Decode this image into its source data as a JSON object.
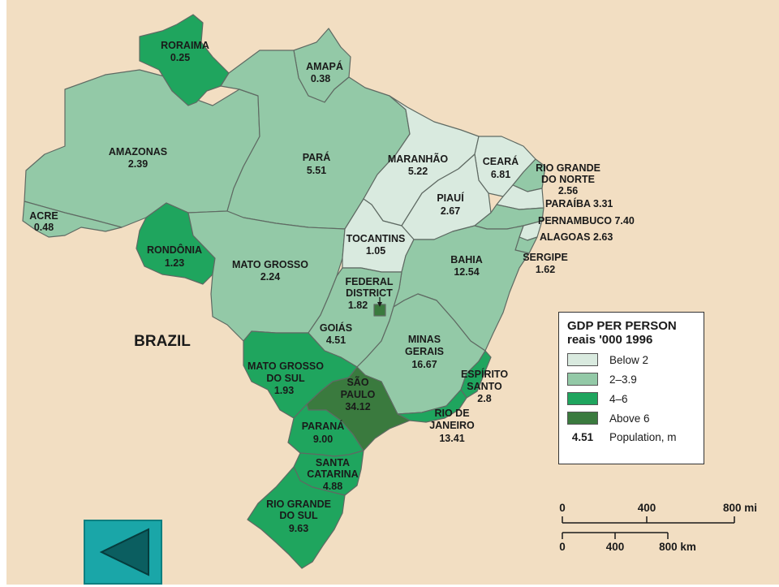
{
  "country_label": "BRAZIL",
  "colors": {
    "below_2": "#d9eadf",
    "range_2_3_9": "#93c9a7",
    "range_4_6": "#1fa55e",
    "above_6": "#3a7a3e",
    "background": "#f2dec2",
    "back_button": "#1aa6a8"
  },
  "legend": {
    "title_line1": "GDP PER PERSON",
    "title_line2": "reais '000 1996",
    "items": [
      {
        "label": "Below 2",
        "color": "#d9eadf"
      },
      {
        "label": "2–3.9",
        "color": "#93c9a7"
      },
      {
        "label": "4–6",
        "color": "#1fa55e"
      },
      {
        "label": "Above 6",
        "color": "#3a7a3e"
      }
    ],
    "population_sample": "4.51",
    "population_label": "Population, m"
  },
  "states": {
    "roraima": {
      "name": "RORAIMA",
      "pop": "0.25",
      "category": "4-6"
    },
    "amapa": {
      "name": "AMAPÁ",
      "pop": "0.38",
      "category": "2-3.9"
    },
    "amazonas": {
      "name": "AMAZONAS",
      "pop": "2.39",
      "category": "2-3.9"
    },
    "para": {
      "name": "PARÁ",
      "pop": "5.51",
      "category": "2-3.9"
    },
    "acre": {
      "name": "ACRE",
      "pop": "0.48",
      "category": "2-3.9"
    },
    "rondonia": {
      "name": "RONDÔNIA",
      "pop": "1.23",
      "category": "4-6"
    },
    "mato_grosso": {
      "name": "MATO GROSSO",
      "pop": "2.24",
      "category": "2-3.9"
    },
    "maranhao": {
      "name": "MARANHÃO",
      "pop": "5.22",
      "category": "below 2"
    },
    "ceara": {
      "name": "CEARÁ",
      "pop": "6.81",
      "category": "below 2"
    },
    "piaui": {
      "name": "PIAUÍ",
      "pop": "2.67",
      "category": "below 2"
    },
    "tocantins": {
      "name": "TOCANTINS",
      "pop": "1.05",
      "category": "below 2"
    },
    "rio_grande_do_norte": {
      "name1": "RIO GRANDE",
      "name2": "DO NORTE",
      "pop": "2.56",
      "category": "2-3.9"
    },
    "paraiba": {
      "label": "PARAÍBA 3.31",
      "category": "below 2"
    },
    "pernambuco": {
      "label": "PERNAMBUCO 7.40",
      "category": "2-3.9"
    },
    "alagoas": {
      "label": "ALAGOAS 2.63",
      "category": "below 2"
    },
    "sergipe": {
      "name": "SERGIPE",
      "pop": "1.62",
      "category": "2-3.9"
    },
    "bahia": {
      "name": "BAHIA",
      "pop": "12.54",
      "category": "2-3.9"
    },
    "federal_district": {
      "name1": "FEDERAL",
      "name2": "DISTRICT",
      "pop": "1.82",
      "category": "above 6"
    },
    "goias": {
      "name": "GOIÁS",
      "pop": "4.51",
      "category": "2-3.9"
    },
    "minas_gerais": {
      "name1": "MINAS",
      "name2": "GERAIS",
      "pop": "16.67",
      "category": "2-3.9"
    },
    "espirito_santo": {
      "name1": "ESPÍRITO",
      "name2": "SANTO",
      "pop": "2.8",
      "category": "4-6"
    },
    "mato_grosso_do_sul": {
      "name1": "MATO GROSSO",
      "name2": "DO SUL",
      "pop": "1.93",
      "category": "4-6"
    },
    "sao_paulo": {
      "name1": "SÃO",
      "name2": "PAULO",
      "pop": "34.12",
      "category": "above 6"
    },
    "rio_de_janeiro": {
      "name1": "RIO DE",
      "name2": "JANEIRO",
      "pop": "13.41",
      "category": "4-6"
    },
    "parana": {
      "name": "PARANÁ",
      "pop": "9.00",
      "category": "4-6"
    },
    "santa_catarina": {
      "name1": "SANTA",
      "name2": "CATARINA",
      "pop": "4.88",
      "category": "4-6"
    },
    "rio_grande_do_sul": {
      "name1": "RIO GRANDE",
      "name2": "DO SUL",
      "pop": "9.63",
      "category": "4-6"
    }
  },
  "scale": {
    "miles": {
      "ticks": [
        "0",
        "400",
        "800 mi"
      ]
    },
    "km": {
      "ticks": [
        "0",
        "400",
        "800 km"
      ]
    }
  },
  "back_button": {
    "icon": "left-triangle-icon"
  }
}
